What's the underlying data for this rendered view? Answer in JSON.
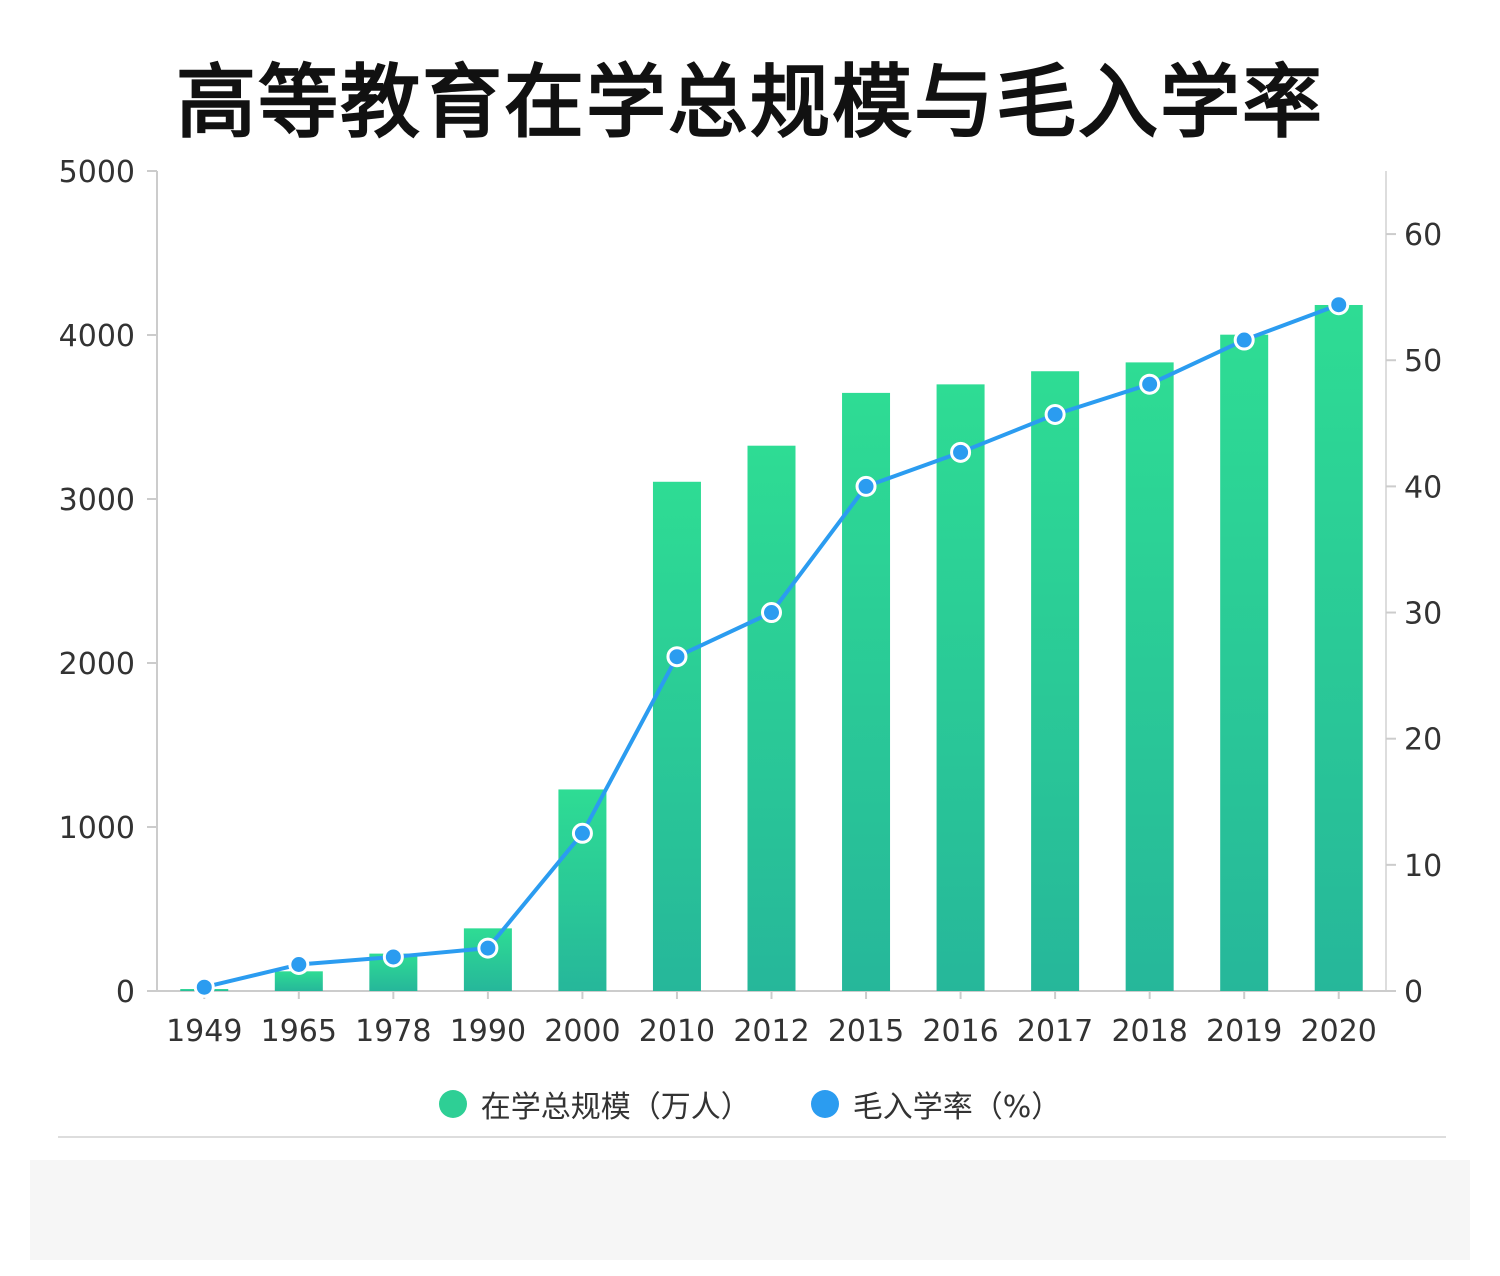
{
  "chart_data": {
    "type": "bar",
    "title": "高等教育在学总规模与毛入学率",
    "categories": [
      "1949",
      "1965",
      "1978",
      "1990",
      "2000",
      "2010",
      "2012",
      "2015",
      "2016",
      "2017",
      "2018",
      "2019",
      "2020"
    ],
    "series": [
      {
        "name": "在学总规模（万人）",
        "type": "bar",
        "axis": "left",
        "values": [
          12,
          120,
          228,
          382,
          1229,
          3105,
          3325,
          3647,
          3699,
          3779,
          3833,
          4002,
          4183
        ]
      },
      {
        "name": "毛入学率（%）",
        "type": "line",
        "axis": "right",
        "values": [
          0.3,
          2.1,
          2.7,
          3.4,
          12.5,
          26.5,
          30.0,
          40.0,
          42.7,
          45.7,
          48.1,
          51.6,
          54.4
        ]
      }
    ],
    "y_left": {
      "ylim": [
        0,
        5000
      ],
      "ticks": [
        "0",
        "1000",
        "2000",
        "3000",
        "4000",
        "5000"
      ]
    },
    "y_right": {
      "ylim": [
        0,
        65
      ],
      "ticks": [
        "0",
        "10",
        "20",
        "30",
        "40",
        "50",
        "60"
      ]
    },
    "legend_position": "bottom-center",
    "colors": {
      "bar_top": "#2edc94",
      "bar_bottom": "#26b79a",
      "line": "#2b9cf0",
      "legend_bar": "#2ecf95",
      "legend_line": "#2b9cf0"
    }
  }
}
